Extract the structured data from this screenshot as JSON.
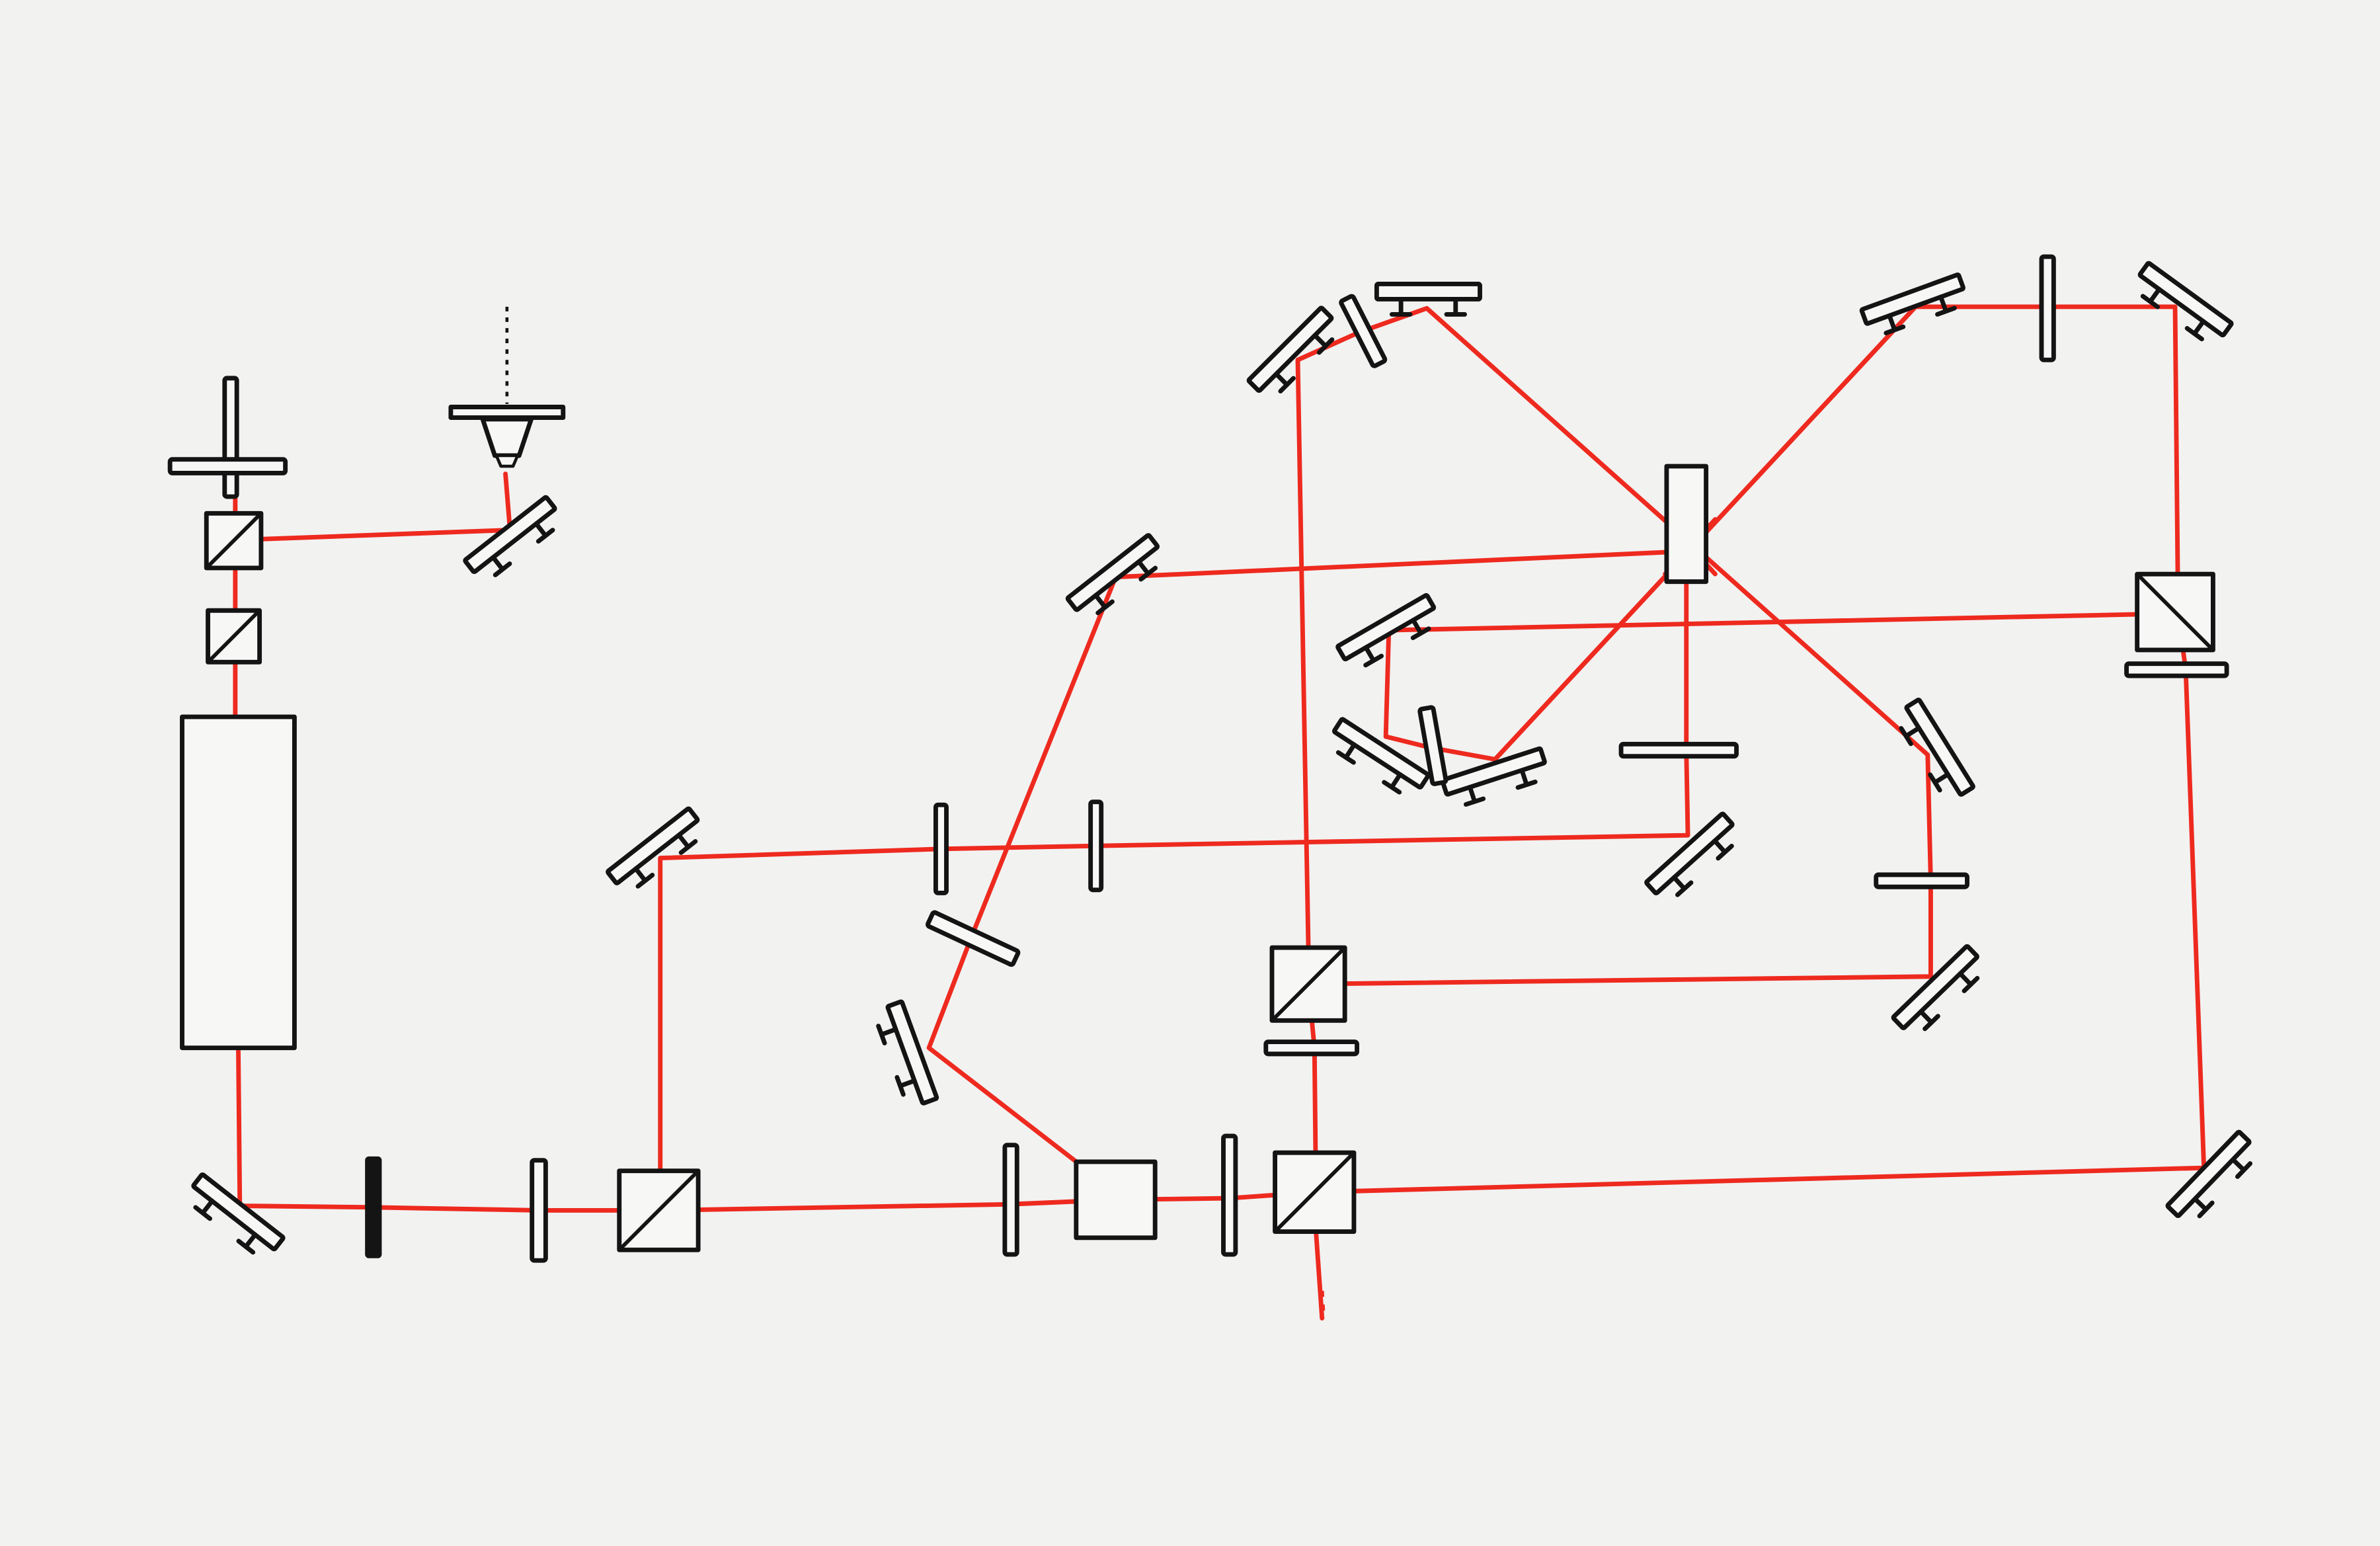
{
  "colors": {
    "background": "#f2f2f1",
    "beam": "#ee2a1f",
    "component_stroke": "#141414",
    "component_fill": "#f7f7f6"
  },
  "components": {
    "mirrors": 19,
    "beam_splitter_cubes": 7,
    "waveplates": 13,
    "laser_head": 1,
    "objective": 1,
    "neutral_filter": 1,
    "crystal": 1,
    "vertical_mount": 1
  }
}
